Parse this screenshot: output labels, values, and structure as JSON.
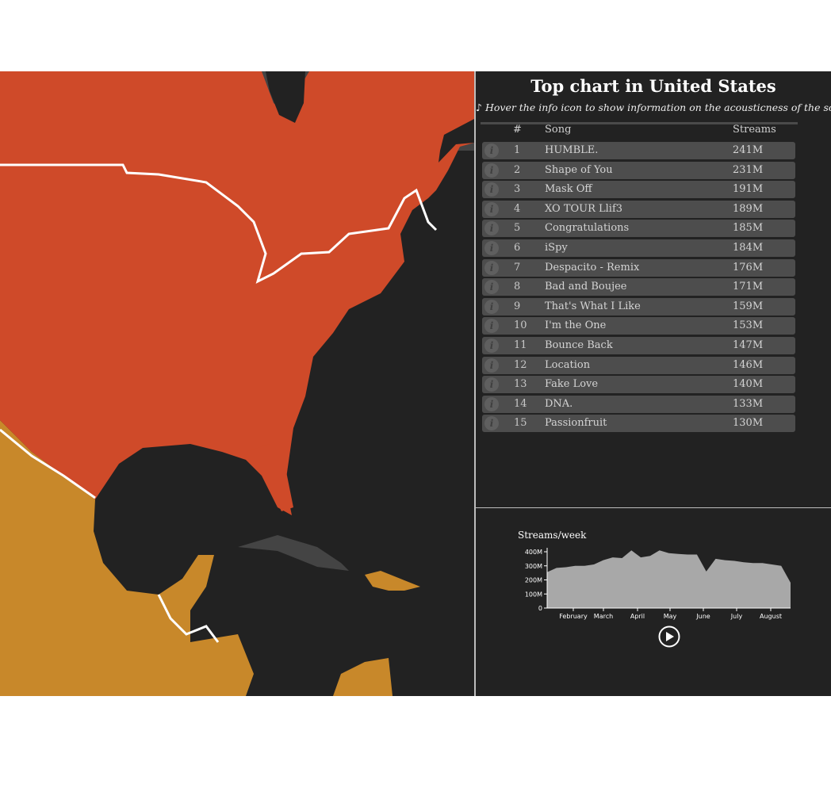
{
  "panel": {
    "title": "Top chart in United States",
    "subtitle": "♪ Hover the info icon to show information on the acousticness of the song ♪",
    "headers": {
      "rank": "#",
      "song": "Song",
      "streams": "Streams"
    }
  },
  "songs": [
    {
      "rank": "1",
      "song": "HUMBLE.",
      "streams": "241M"
    },
    {
      "rank": "2",
      "song": "Shape of You",
      "streams": "231M"
    },
    {
      "rank": "3",
      "song": "Mask Off",
      "streams": "191M"
    },
    {
      "rank": "4",
      "song": "XO TOUR Llif3",
      "streams": "189M"
    },
    {
      "rank": "5",
      "song": "Congratulations",
      "streams": "185M"
    },
    {
      "rank": "6",
      "song": "iSpy",
      "streams": "184M"
    },
    {
      "rank": "7",
      "song": "Despacito - Remix",
      "streams": "176M"
    },
    {
      "rank": "8",
      "song": "Bad and Boujee",
      "streams": "171M"
    },
    {
      "rank": "9",
      "song": "That's What I Like",
      "streams": "159M"
    },
    {
      "rank": "10",
      "song": "I'm the One",
      "streams": "153M"
    },
    {
      "rank": "11",
      "song": "Bounce Back",
      "streams": "147M"
    },
    {
      "rank": "12",
      "song": "Location",
      "streams": "146M"
    },
    {
      "rank": "13",
      "song": "Fake Love",
      "streams": "140M"
    },
    {
      "rank": "14",
      "song": "DNA.",
      "streams": "133M"
    },
    {
      "rank": "15",
      "song": "Passionfruit",
      "streams": "130M"
    }
  ],
  "colors": {
    "us": "#cf4a29",
    "neighbor": "#c8882a",
    "water": "#222222",
    "other_land": "#444444"
  },
  "icons": {
    "info": "info-icon",
    "play": "play-icon"
  },
  "chart_data": {
    "type": "area",
    "title": "Streams/week",
    "xlabel": "",
    "ylabel": "",
    "ylim": [
      0,
      400
    ],
    "y_ticks": [
      "0",
      "100M",
      "200M",
      "300M",
      "400M"
    ],
    "x_ticks": [
      "February",
      "March",
      "April",
      "May",
      "June",
      "July",
      "August"
    ],
    "series": [
      {
        "values": [
          255,
          285,
          290,
          300,
          300,
          310,
          340,
          360,
          355,
          410,
          360,
          370,
          410,
          390,
          385,
          380,
          380,
          260,
          350,
          340,
          335,
          325,
          320,
          320,
          310,
          300,
          180
        ]
      }
    ]
  }
}
